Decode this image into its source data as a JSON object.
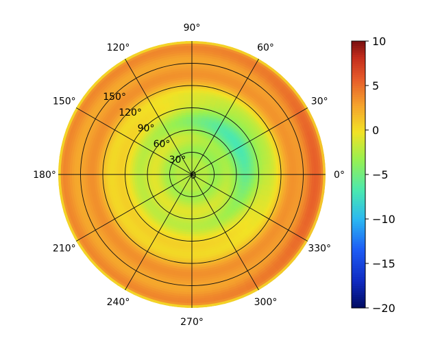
{
  "chart_data": {
    "type": "heatmap",
    "projection": "polar",
    "title": "",
    "theta_ticks": [
      {
        "value": 0,
        "label": "0°"
      },
      {
        "value": 30,
        "label": "30°"
      },
      {
        "value": 60,
        "label": "60°"
      },
      {
        "value": 90,
        "label": "90°"
      },
      {
        "value": 120,
        "label": "120°"
      },
      {
        "value": 150,
        "label": "150°"
      },
      {
        "value": 180,
        "label": "180°"
      },
      {
        "value": 210,
        "label": "210°"
      },
      {
        "value": 240,
        "label": "240°"
      },
      {
        "value": 270,
        "label": "270°"
      },
      {
        "value": 300,
        "label": "300°"
      },
      {
        "value": 330,
        "label": "330°"
      }
    ],
    "r_ticks": [
      {
        "value": 0,
        "label": "0"
      },
      {
        "value": 30,
        "label": "30°"
      },
      {
        "value": 60,
        "label": "60°"
      },
      {
        "value": 90,
        "label": "90°"
      },
      {
        "value": 120,
        "label": "120°"
      },
      {
        "value": 150,
        "label": "150°"
      }
    ],
    "rlim": [
      0,
      180
    ],
    "r_label_angle": 135,
    "grid": true,
    "colorbar": {
      "colormap": "turbo",
      "vmin": -20,
      "vmax": 10,
      "ticks": [
        {
          "value": 10,
          "label": "10"
        },
        {
          "value": 5,
          "label": "5"
        },
        {
          "value": 0,
          "label": "0"
        },
        {
          "value": -5,
          "label": "−5"
        },
        {
          "value": -10,
          "label": "−10"
        },
        {
          "value": -15,
          "label": "−15"
        },
        {
          "value": -20,
          "label": "−20"
        }
      ]
    },
    "field_description_values": {
      "r_samples": [
        0,
        30,
        60,
        90,
        120,
        150,
        175,
        180
      ],
      "mean_value_at_r": [
        -2.5,
        -2.0,
        -1.5,
        -0.5,
        2.0,
        3.5,
        3.0,
        -1.5
      ],
      "cool_zone_theta_range": [
        -40,
        110
      ],
      "cool_zone_r_range": [
        40,
        110
      ],
      "cool_zone_min_value": -6,
      "hot_zone_theta_range": [
        -60,
        60
      ],
      "hot_zone_r_range": [
        150,
        175
      ],
      "hot_zone_max_value": 6
    }
  }
}
